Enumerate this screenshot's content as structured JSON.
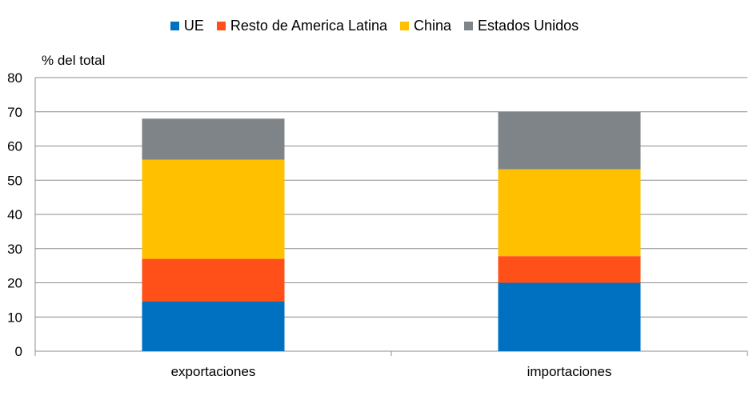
{
  "chart_data": {
    "type": "bar",
    "stacked": true,
    "title": "",
    "ylabel": "% del total",
    "xlabel": "",
    "ylim": [
      0,
      80
    ],
    "yticks": [
      0,
      10,
      20,
      30,
      40,
      50,
      60,
      70,
      80
    ],
    "grid": true,
    "legend_position": "top",
    "categories": [
      "exportaciones",
      "importaciones"
    ],
    "series": [
      {
        "name": "UE",
        "color": "#0070C0",
        "values": [
          14.5,
          20
        ]
      },
      {
        "name": "Resto de America Latina",
        "color": "#FF5019",
        "values": [
          12.5,
          7.8
        ]
      },
      {
        "name": "China",
        "color": "#FFC000",
        "values": [
          29,
          25.4
        ]
      },
      {
        "name": "Estados Unidos",
        "color": "#7F8488",
        "values": [
          12,
          16.8
        ]
      }
    ]
  }
}
